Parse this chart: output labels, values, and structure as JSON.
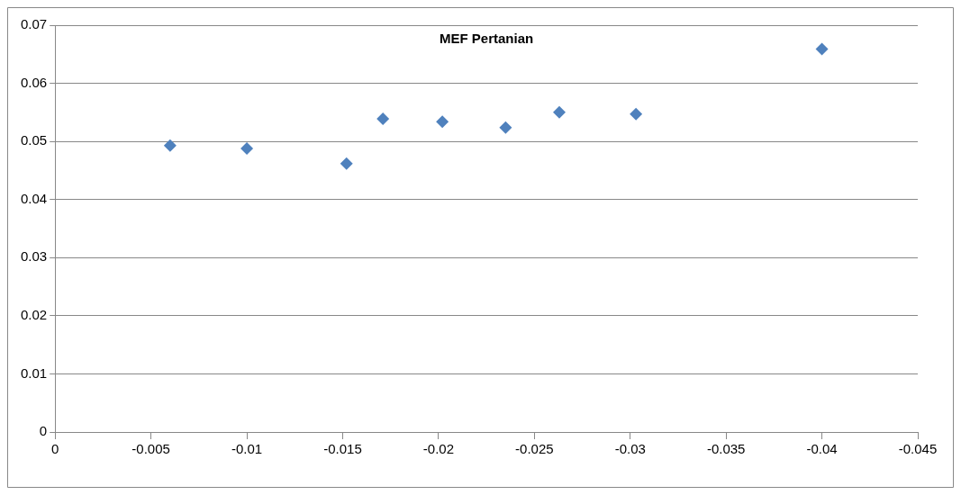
{
  "chart_data": {
    "type": "scatter",
    "title": "MEF Pertanian",
    "x": [
      -0.006,
      -0.01,
      -0.0152,
      -0.0171,
      -0.0202,
      -0.0235,
      -0.0263,
      -0.0303,
      -0.04
    ],
    "series": [
      {
        "color": "#4f81bd",
        "values": [
          0.0493,
          0.0488,
          0.0462,
          0.0539,
          0.0534,
          0.0524,
          0.055,
          0.0547,
          0.0659
        ]
      }
    ],
    "xlim": [
      0,
      -0.045
    ],
    "xticks": [
      0,
      -0.005,
      -0.01,
      -0.015,
      -0.02,
      -0.025,
      -0.03,
      -0.035,
      -0.04,
      -0.045
    ],
    "ylim": [
      0,
      0.07
    ],
    "yticks": [
      0,
      0.01,
      0.02,
      0.03,
      0.04,
      0.05,
      0.06,
      0.07
    ],
    "grid": "y",
    "legend": false,
    "marker": "diamond"
  }
}
